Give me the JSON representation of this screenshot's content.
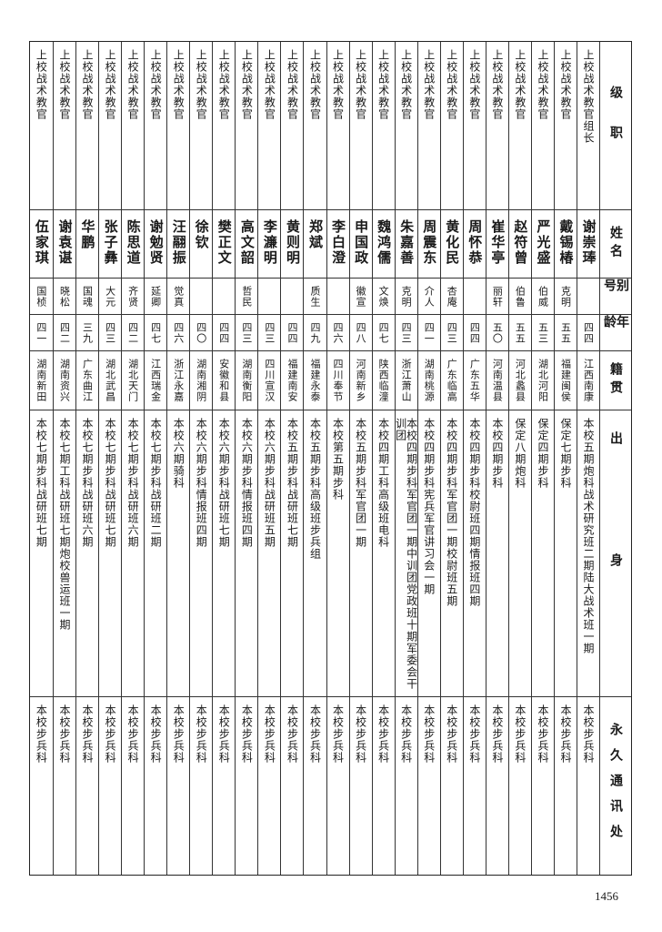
{
  "headers": [
    "级职",
    "姓名",
    "别号",
    "年龄",
    "籍贯",
    "出身",
    "永久通讯处"
  ],
  "rows": [
    {
      "rank": "上校战术教官组长",
      "name": "谢崇琫",
      "alias": "",
      "age": "四四",
      "origin": "江西南康",
      "education": "本校五期炮科战术研究班二期陆大战术班一期",
      "address": "本校步兵科"
    },
    {
      "rank": "上校战术教官",
      "name": "戴锡椿",
      "alias": "克明",
      "age": "五五",
      "origin": "福建闽侯",
      "education": "保定七期步科",
      "address": "本校步兵科"
    },
    {
      "rank": "上校战术教官",
      "name": "严光盛",
      "alias": "伯威",
      "age": "五三",
      "origin": "湖北河阳",
      "education": "保定四期步科",
      "address": "本校步兵科"
    },
    {
      "rank": "上校战术教官",
      "name": "赵符曾",
      "alias": "伯鲁",
      "age": "五五",
      "origin": "河北蠡县",
      "education": "保定八期炮科",
      "address": "本校步兵科"
    },
    {
      "rank": "上校战术教官",
      "name": "崔华亭",
      "alias": "丽轩",
      "age": "五〇",
      "origin": "河南温县",
      "education": "本校四期步科",
      "address": "本校步兵科"
    },
    {
      "rank": "上校战术教官",
      "name": "周怀恭",
      "alias": "",
      "age": "四四",
      "origin": "广东五华",
      "education": "本校四期步科校尉班四期情报班四期",
      "address": "本校步兵科"
    },
    {
      "rank": "上校战术教官",
      "name": "黄化民",
      "alias": "杏庵",
      "age": "四三",
      "origin": "广东临高",
      "education": "本校四期步科军官团一期校尉班五期",
      "address": "本校步兵科"
    },
    {
      "rank": "上校战术教官",
      "name": "周震东",
      "alias": "介人",
      "age": "四一",
      "origin": "湖南桃源",
      "education": "本校四期步科宪兵军官讲习会一期",
      "address": "本校步兵科"
    },
    {
      "rank": "上校战术教官",
      "name": "朱嘉善",
      "alias": "克明",
      "age": "四三",
      "origin": "浙江萧山",
      "education": "本校四期步科军官团一期中训团党政班十期军委会干训团",
      "address": "本校步兵科"
    },
    {
      "rank": "上校战术教官",
      "name": "魏鸿儒",
      "alias": "文焕",
      "age": "四七",
      "origin": "陕西临潼",
      "education": "本校四期工科高级班电科",
      "address": "本校步兵科"
    },
    {
      "rank": "上校战术教官",
      "name": "申国政",
      "alias": "徽宣",
      "age": "四八",
      "origin": "河南新乡",
      "education": "本校五期步科军官团一期",
      "address": "本校步兵科"
    },
    {
      "rank": "上校战术教官",
      "name": "李白澄",
      "alias": "",
      "age": "四六",
      "origin": "四川奉节",
      "education": "本校第五期步科",
      "address": "本校步兵科"
    },
    {
      "rank": "上校战术教官",
      "name": "郑斌",
      "alias": "质生",
      "age": "四九",
      "origin": "福建永泰",
      "education": "本校五期步科高级班步兵组",
      "address": "本校步兵科"
    },
    {
      "rank": "上校战术教官",
      "name": "黄则明",
      "alias": "",
      "age": "四四",
      "origin": "福建南安",
      "education": "本校五期步科战研班七期",
      "address": "本校步兵科"
    },
    {
      "rank": "上校战术教官",
      "name": "李濂明",
      "alias": "",
      "age": "四三",
      "origin": "四川宣汉",
      "education": "本校六期步科战研班五期",
      "address": "本校步兵科"
    },
    {
      "rank": "上校战术教官",
      "name": "高文韶",
      "alias": "哲民",
      "age": "四三",
      "origin": "湖南衡阳",
      "education": "本校六期步科情报班四期",
      "address": "本校步兵科"
    },
    {
      "rank": "上校战术教官",
      "name": "樊正文",
      "alias": "",
      "age": "四四",
      "origin": "安徽和县",
      "education": "本校六期步科战研班七期",
      "address": "本校步兵科"
    },
    {
      "rank": "上校战术教官",
      "name": "徐钦",
      "alias": "",
      "age": "四〇",
      "origin": "湖南湘阴",
      "education": "本校六期步科情报班四期",
      "address": "本校步兵科"
    },
    {
      "rank": "上校战术教官",
      "name": "汪翮振",
      "alias": "觉真",
      "age": "四六",
      "origin": "浙江永嘉",
      "education": "本校六期骑科",
      "address": "本校步兵科"
    },
    {
      "rank": "上校战术教官",
      "name": "谢勉贤",
      "alias": "延卿",
      "age": "四七",
      "origin": "江西瑞金",
      "education": "本校七期步科战研班二期",
      "address": "本校步兵科"
    },
    {
      "rank": "上校战术教官",
      "name": "陈思道",
      "alias": "齐贤",
      "age": "四二",
      "origin": "湖北天门",
      "education": "本校七期步科战研班六期",
      "address": "本校步兵科"
    },
    {
      "rank": "上校战术教官",
      "name": "张子彝",
      "alias": "大元",
      "age": "四三",
      "origin": "湖北武昌",
      "education": "本校七期步科战研班七期",
      "address": "本校步兵科"
    },
    {
      "rank": "上校战术教官",
      "name": "华鹏",
      "alias": "国魂",
      "age": "三九",
      "origin": "广东曲江",
      "education": "本校七期步科战研班六期",
      "address": "本校步兵科"
    },
    {
      "rank": "上校战术教官",
      "name": "谢袁谌",
      "alias": "晓松",
      "age": "四二",
      "origin": "湖南资兴",
      "education": "本校七期工科战研班七期炮校兽运班一期",
      "address": "本校步兵科"
    },
    {
      "rank": "上校战术教官",
      "name": "伍家琪",
      "alias": "国桢",
      "age": "四一",
      "origin": "湖南新田",
      "education": "本校七期步科战研班七期",
      "address": "本校步兵科"
    }
  ],
  "page_number": "1456"
}
